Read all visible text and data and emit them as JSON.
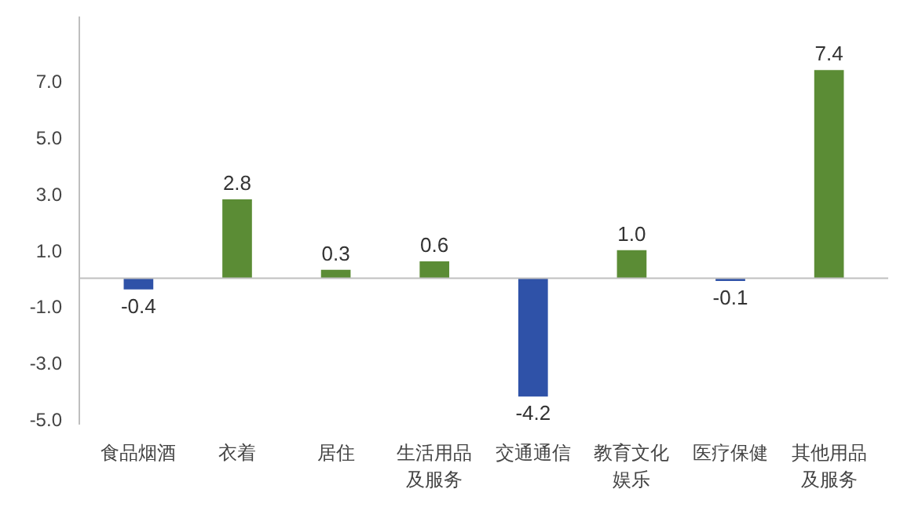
{
  "chart_data": {
    "type": "bar",
    "categories": [
      "食品烟酒",
      "衣着",
      "居住",
      "生活用品及服务",
      "交通通信",
      "教育文化娱乐",
      "医疗保健",
      "其他用品及服务"
    ],
    "values": [
      -0.4,
      2.8,
      0.3,
      0.6,
      -4.2,
      1.0,
      -0.1,
      7.4
    ],
    "colors": [
      "#2f52a8",
      "#5b8c35",
      "#5b8c35",
      "#5b8c35",
      "#2f52a8",
      "#5b8c35",
      "#2f52a8",
      "#5b8c35"
    ],
    "value_labels": [
      "-0.4",
      "2.8",
      "0.3",
      "0.6",
      "-4.2",
      "1.0",
      "-0.1",
      "7.4"
    ],
    "ylim": [
      -5.2,
      9.3
    ],
    "yticks": [
      {
        "value": -5,
        "label": "-5.0"
      },
      {
        "value": -3,
        "label": "-3.0"
      },
      {
        "value": -1,
        "label": "-1.0"
      },
      {
        "value": 1,
        "label": "1.0"
      },
      {
        "value": 3,
        "label": "3.0"
      },
      {
        "value": 5,
        "label": "5.0"
      },
      {
        "value": 7,
        "label": "7.0"
      }
    ],
    "grid": false
  }
}
